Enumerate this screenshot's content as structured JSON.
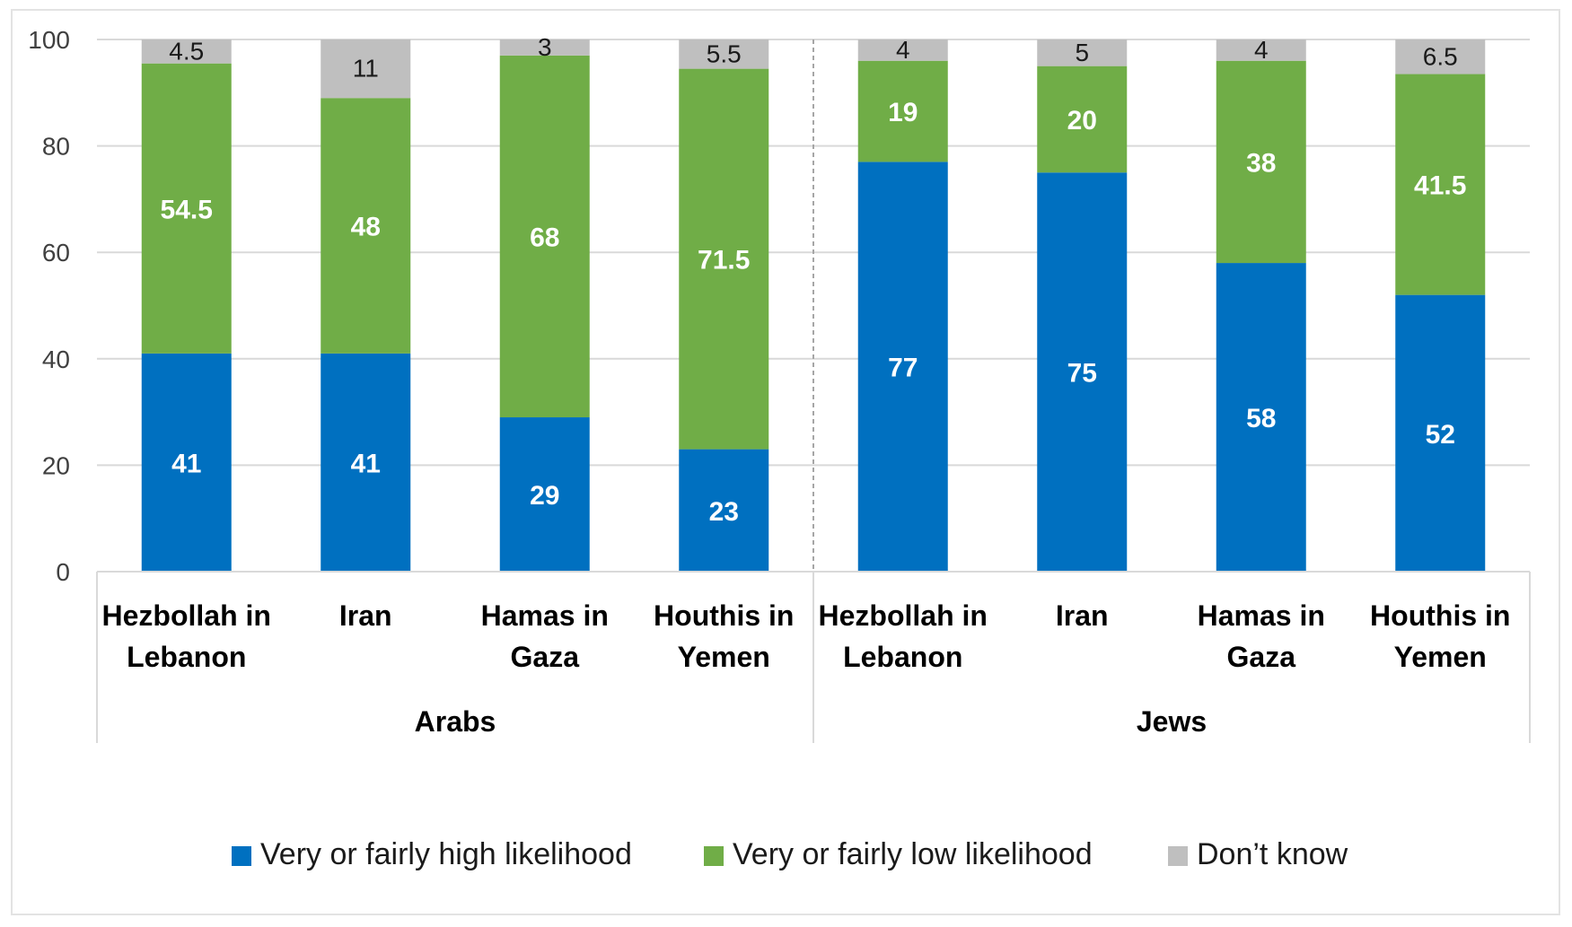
{
  "chart_data": {
    "type": "bar",
    "stacked": true,
    "ylim": [
      0,
      100
    ],
    "yticks": [
      0,
      20,
      40,
      60,
      80,
      100
    ],
    "grid": true,
    "legend_position": "bottom",
    "groups": [
      {
        "label": "Arabs",
        "categories": [
          {
            "l1": "Hezbollah in",
            "l2": "Lebanon"
          },
          {
            "l1": "Iran",
            "l2": ""
          },
          {
            "l1": "Hamas in",
            "l2": "Gaza"
          },
          {
            "l1": "Houthis in",
            "l2": "Yemen"
          }
        ]
      },
      {
        "label": "Jews",
        "categories": [
          {
            "l1": "Hezbollah in",
            "l2": "Lebanon"
          },
          {
            "l1": "Iran",
            "l2": ""
          },
          {
            "l1": "Hamas in",
            "l2": "Gaza"
          },
          {
            "l1": "Houthis in",
            "l2": "Yemen"
          }
        ]
      }
    ],
    "series": [
      {
        "name": "Very or fairly high likelihood",
        "color": "#0070c0",
        "values": [
          41,
          41,
          29,
          23,
          77,
          75,
          58,
          52
        ]
      },
      {
        "name": "Very or fairly low likelihood",
        "color": "#70ad47",
        "values": [
          54.5,
          48,
          68,
          71.5,
          19,
          20,
          38,
          41.5
        ]
      },
      {
        "name": "Don’t know",
        "color": "#bfbfbf",
        "values": [
          4.5,
          11,
          3,
          5.5,
          4,
          5,
          4,
          6.5
        ]
      }
    ]
  }
}
